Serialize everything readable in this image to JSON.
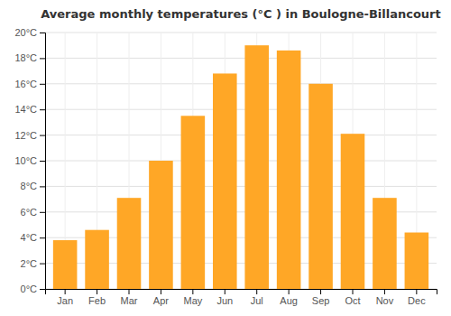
{
  "chart_data": {
    "type": "bar",
    "title": "Average monthly temperatures (°C ) in Boulogne-Billancourt",
    "categories": [
      "Jan",
      "Feb",
      "Mar",
      "Apr",
      "May",
      "Jun",
      "Jul",
      "Aug",
      "Sep",
      "Oct",
      "Nov",
      "Dec"
    ],
    "values": [
      3.8,
      4.6,
      7.1,
      10.0,
      13.5,
      16.8,
      19.0,
      18.6,
      16.0,
      12.1,
      7.1,
      4.4
    ],
    "color": "#FFA726",
    "ylim": [
      0,
      20
    ],
    "yticks": [
      {
        "value": 0,
        "label": "0°C"
      },
      {
        "value": 2,
        "label": "2°C"
      },
      {
        "value": 4,
        "label": "4°C"
      },
      {
        "value": 6,
        "label": "6°C"
      },
      {
        "value": 8,
        "label": "8°C"
      },
      {
        "value": 10,
        "label": "10°C"
      },
      {
        "value": 12,
        "label": "12°C"
      },
      {
        "value": 14,
        "label": "14°C"
      },
      {
        "value": 16,
        "label": "16°C"
      },
      {
        "value": 18,
        "label": "18°C"
      },
      {
        "value": 20,
        "label": "20°C"
      }
    ],
    "grid": true
  }
}
